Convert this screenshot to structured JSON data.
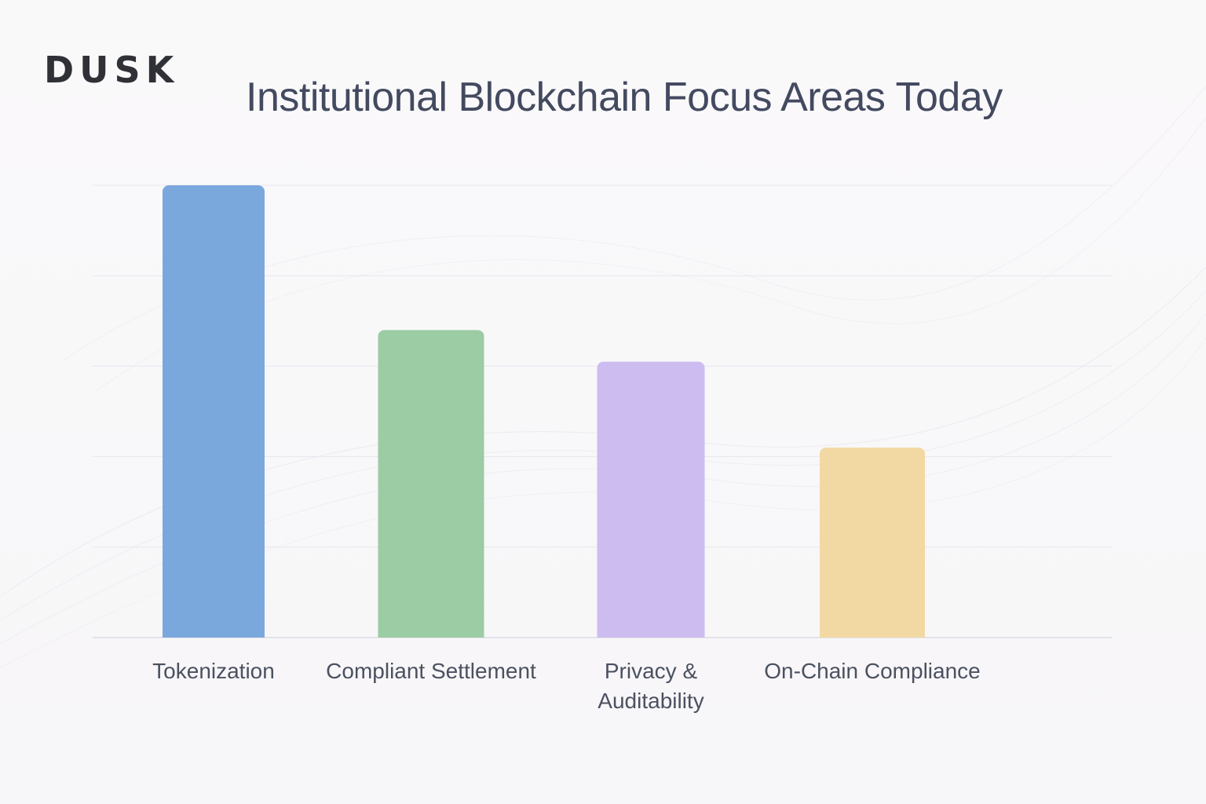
{
  "brand": {
    "name": "DUSK"
  },
  "chart_data": {
    "type": "bar",
    "title": "Institutional Blockchain Focus Areas Today",
    "categories": [
      "Tokenization",
      "Compliant Settlement",
      "Privacy & Auditability",
      "On-Chain Compliance"
    ],
    "values": [
      100,
      68,
      61,
      42
    ],
    "ylim": [
      0,
      100
    ],
    "xlabel": "",
    "ylabel": "",
    "grid": true,
    "legend": "none",
    "colors": [
      "#7ba8dc",
      "#9bcca4",
      "#cdbcf0",
      "#f2d9a3"
    ],
    "xlabel_lines": [
      [
        "Tokenization"
      ],
      [
        "Compliant Settlement"
      ],
      [
        "Privacy &",
        "Auditability"
      ],
      [
        "On-Chain Compliance"
      ]
    ]
  }
}
